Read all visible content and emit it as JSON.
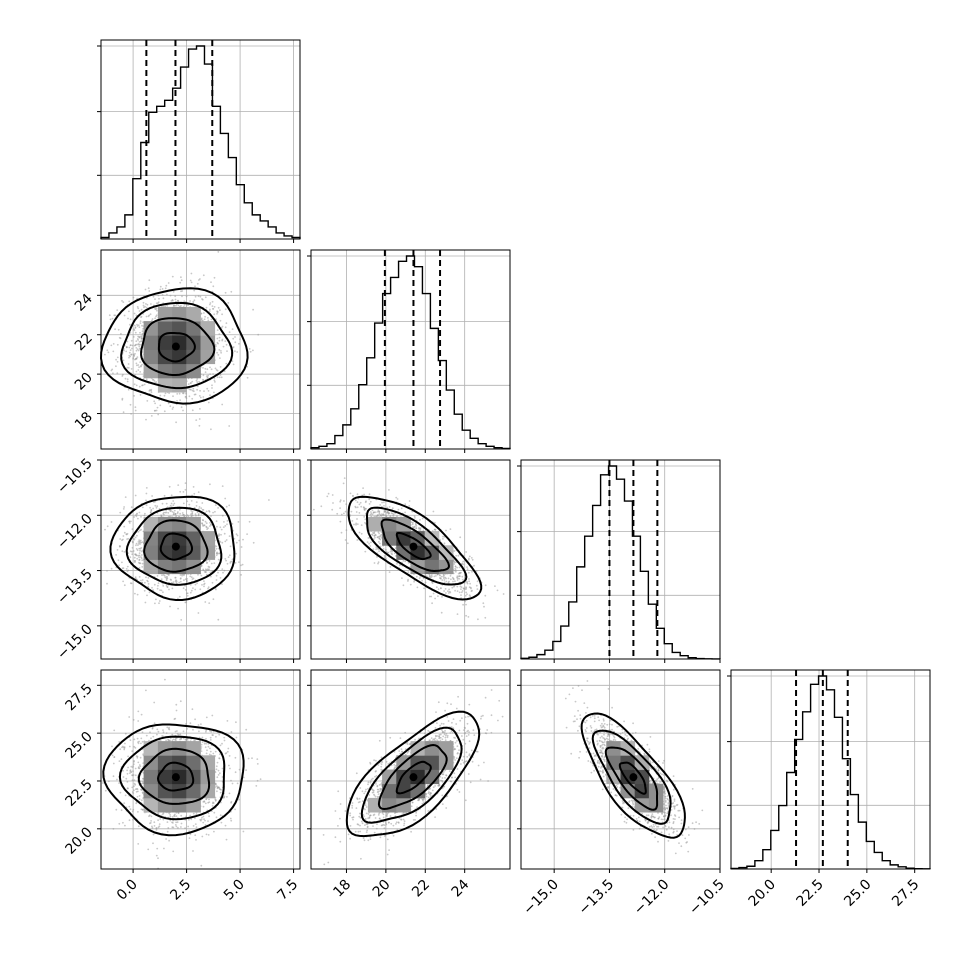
{
  "chart_data": {
    "type": "corner",
    "parameters": [
      {
        "id": "p1",
        "mean": 2.0,
        "sd": 1.2,
        "range": [
          -1.5,
          7.8
        ],
        "ticks": [
          0.0,
          2.5,
          5.0,
          7.5
        ],
        "tick_labels": [
          "0.0",
          "2.5",
          "5.0",
          "7.5"
        ],
        "quantiles": [
          0.62,
          1.98,
          3.7
        ],
        "hist_counts": [
          0.5,
          2,
          4,
          8,
          20,
          32,
          42,
          44,
          46,
          50,
          57,
          63,
          64,
          58,
          44,
          35,
          27,
          18,
          12,
          8,
          6,
          4,
          2,
          1,
          0.5
        ]
      },
      {
        "id": "p2",
        "mean": 21.4,
        "sd": 1.4,
        "range": [
          16.2,
          26.3
        ],
        "ticks": [
          18,
          20,
          22,
          24
        ],
        "tick_labels": [
          "18",
          "20",
          "22",
          "24"
        ],
        "quantiles": [
          19.95,
          21.4,
          22.75
        ],
        "hist_counts": [
          0.5,
          1,
          2,
          5,
          9,
          15,
          24,
          34,
          47,
          58,
          64,
          70,
          72,
          68,
          58,
          45,
          33,
          22,
          13,
          7,
          4,
          2,
          1,
          0.5,
          0.2
        ]
      },
      {
        "id": "p3",
        "mean": -12.85,
        "sd": 0.58,
        "range": [
          -15.9,
          -10.5
        ],
        "ticks": [
          -15.0,
          -13.5,
          -12.0,
          -10.5
        ],
        "tick_labels": [
          "−15.0",
          "−13.5",
          "−12.0",
          "−10.5"
        ],
        "quantiles": [
          -13.5,
          -12.85,
          -12.2
        ],
        "hist_counts": [
          0.3,
          0.8,
          2,
          4,
          8,
          15,
          26,
          42,
          56,
          70,
          84,
          88,
          82,
          72,
          56,
          40,
          25,
          14,
          7,
          3,
          1.5,
          0.6,
          0.2,
          0.1,
          0.05
        ]
      },
      {
        "id": "p4",
        "mean": 22.7,
        "sd": 1.35,
        "range": [
          17.9,
          28.3
        ],
        "ticks": [
          20.0,
          22.5,
          25.0,
          27.5
        ],
        "tick_labels": [
          "20.0",
          "22.5",
          "25.0",
          "27.5"
        ],
        "quantiles": [
          21.3,
          22.7,
          24.0
        ],
        "hist_counts": [
          0.2,
          0.5,
          1,
          3,
          7,
          14,
          23,
          35,
          47,
          57,
          67,
          70,
          65,
          55,
          40,
          27,
          17,
          10,
          6,
          3,
          1.5,
          0.8,
          0.3,
          0.1,
          0.05
        ]
      }
    ],
    "hist_yticks": [
      0.33,
      0.66,
      1.0
    ],
    "correlations": [
      {
        "pair": [
          1,
          0
        ],
        "rho": 0.0
      },
      {
        "pair": [
          2,
          0
        ],
        "rho": 0.0
      },
      {
        "pair": [
          2,
          1
        ],
        "rho": -0.75
      },
      {
        "pair": [
          3,
          0
        ],
        "rho": 0.0
      },
      {
        "pair": [
          3,
          1
        ],
        "rho": 0.7
      },
      {
        "pair": [
          3,
          2
        ],
        "rho": -0.75
      }
    ],
    "contour_levels_sigma": [
      0.5,
      1.0,
      1.5,
      2.0
    ],
    "grid": true,
    "line_color": "#000000",
    "sample_color": "#9a9a9a",
    "density_cmap": [
      "#ffffff",
      "#000000"
    ]
  }
}
